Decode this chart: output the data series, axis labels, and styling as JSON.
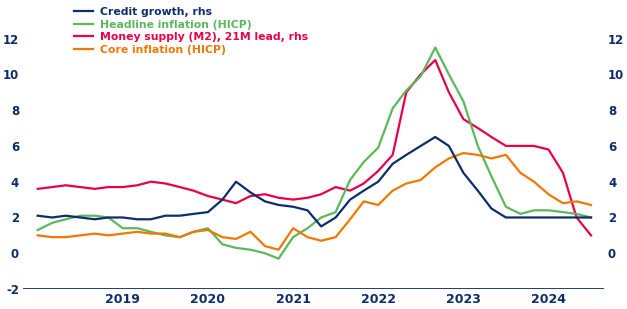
{
  "legend_labels": [
    "Credit growth, rhs",
    "Headline inflation (HICP)",
    "Money supply (M2), 21M lead, rhs",
    "Core inflation (HICP)"
  ],
  "colors": {
    "credit": "#0d2d6b",
    "headline": "#5cb85c",
    "money": "#e8004a",
    "core": "#f07800"
  },
  "lhs_ylim": [
    -2,
    14
  ],
  "rhs_ylim": [
    -2,
    14
  ],
  "lhs_yticks": [
    -2,
    0,
    2,
    4,
    6,
    8,
    10,
    12
  ],
  "rhs_yticks": [
    0,
    2,
    4,
    6,
    8,
    10,
    12
  ],
  "credit_growth": {
    "t": [
      2018.0,
      2018.17,
      2018.33,
      2018.5,
      2018.67,
      2018.83,
      2019.0,
      2019.17,
      2019.33,
      2019.5,
      2019.67,
      2019.83,
      2020.0,
      2020.17,
      2020.33,
      2020.5,
      2020.67,
      2020.83,
      2021.0,
      2021.17,
      2021.33,
      2021.5,
      2021.67,
      2021.83,
      2022.0,
      2022.17,
      2022.33,
      2022.5,
      2022.67,
      2022.83,
      2023.0,
      2023.17,
      2023.33,
      2023.5,
      2023.67,
      2023.83,
      2024.0,
      2024.17,
      2024.33,
      2024.5
    ],
    "v": [
      2.1,
      2.0,
      2.1,
      2.0,
      1.9,
      2.0,
      2.0,
      1.9,
      1.9,
      2.1,
      2.1,
      2.2,
      2.3,
      3.0,
      4.0,
      3.4,
      2.9,
      2.7,
      2.6,
      2.4,
      1.5,
      2.0,
      3.0,
      3.5,
      4.0,
      5.0,
      5.5,
      6.0,
      6.5,
      6.0,
      4.5,
      3.5,
      2.5,
      2.0,
      2.0,
      2.0,
      2.0,
      2.0,
      2.0,
      2.0
    ]
  },
  "headline_inflation": {
    "t": [
      2018.0,
      2018.17,
      2018.33,
      2018.5,
      2018.67,
      2018.83,
      2019.0,
      2019.17,
      2019.33,
      2019.5,
      2019.67,
      2019.83,
      2020.0,
      2020.17,
      2020.33,
      2020.5,
      2020.67,
      2020.83,
      2021.0,
      2021.17,
      2021.33,
      2021.5,
      2021.67,
      2021.83,
      2022.0,
      2022.17,
      2022.33,
      2022.5,
      2022.67,
      2022.83,
      2023.0,
      2023.17,
      2023.33,
      2023.5,
      2023.67,
      2023.83,
      2024.0,
      2024.17,
      2024.33,
      2024.5
    ],
    "v": [
      1.3,
      1.7,
      1.9,
      2.1,
      2.1,
      2.0,
      1.4,
      1.4,
      1.2,
      1.0,
      0.9,
      1.2,
      1.4,
      0.5,
      0.3,
      0.2,
      0.0,
      -0.3,
      0.9,
      1.4,
      2.0,
      2.3,
      4.1,
      5.1,
      5.9,
      8.1,
      9.1,
      9.9,
      11.5,
      10.0,
      8.5,
      6.0,
      4.3,
      2.6,
      2.2,
      2.4,
      2.4,
      2.3,
      2.2,
      2.0
    ]
  },
  "money_supply": {
    "t": [
      2018.0,
      2018.17,
      2018.33,
      2018.5,
      2018.67,
      2018.83,
      2019.0,
      2019.17,
      2019.33,
      2019.5,
      2019.67,
      2019.83,
      2020.0,
      2020.17,
      2020.33,
      2020.5,
      2020.67,
      2020.83,
      2021.0,
      2021.17,
      2021.33,
      2021.5,
      2021.67,
      2021.83,
      2022.0,
      2022.17,
      2022.33,
      2022.5,
      2022.67,
      2022.83,
      2023.0,
      2023.17,
      2023.33,
      2023.5,
      2023.67,
      2023.83,
      2024.0,
      2024.17,
      2024.33,
      2024.5
    ],
    "v": [
      3.6,
      3.7,
      3.8,
      3.7,
      3.6,
      3.7,
      3.7,
      3.8,
      4.0,
      3.9,
      3.7,
      3.5,
      3.2,
      3.0,
      2.8,
      3.2,
      3.3,
      3.1,
      3.0,
      3.1,
      3.3,
      3.7,
      3.5,
      3.9,
      4.6,
      5.5,
      9.0,
      10.0,
      10.8,
      9.0,
      7.5,
      7.0,
      6.5,
      6.0,
      6.0,
      6.0,
      5.8,
      4.5,
      2.0,
      1.0
    ]
  },
  "core_inflation": {
    "t": [
      2018.0,
      2018.17,
      2018.33,
      2018.5,
      2018.67,
      2018.83,
      2019.0,
      2019.17,
      2019.33,
      2019.5,
      2019.67,
      2019.83,
      2020.0,
      2020.17,
      2020.33,
      2020.5,
      2020.67,
      2020.83,
      2021.0,
      2021.17,
      2021.33,
      2021.5,
      2021.67,
      2021.83,
      2022.0,
      2022.17,
      2022.33,
      2022.5,
      2022.67,
      2022.83,
      2023.0,
      2023.17,
      2023.33,
      2023.5,
      2023.67,
      2023.83,
      2024.0,
      2024.17,
      2024.33,
      2024.5
    ],
    "v": [
      1.0,
      0.9,
      0.9,
      1.0,
      1.1,
      1.0,
      1.1,
      1.2,
      1.1,
      1.1,
      0.9,
      1.2,
      1.3,
      0.9,
      0.8,
      1.2,
      0.4,
      0.2,
      1.4,
      0.9,
      0.7,
      0.9,
      1.9,
      2.9,
      2.7,
      3.5,
      3.9,
      4.1,
      4.8,
      5.3,
      5.6,
      5.5,
      5.3,
      5.5,
      4.5,
      4.0,
      3.3,
      2.8,
      2.9,
      2.7
    ]
  },
  "xlim": [
    2017.83,
    2024.65
  ],
  "xticks": [
    2019,
    2020,
    2021,
    2022,
    2023,
    2024
  ],
  "lhs_ytick_labels": [
    "-2",
    "0",
    "2",
    "4",
    "6",
    "8",
    "10",
    "12"
  ],
  "rhs_ytick_labels": [
    "0",
    "2",
    "4",
    "6",
    "8",
    "10",
    "12"
  ],
  "tick_color": "#0d2d6b",
  "axis_line_color": "#0d2d6b",
  "background_color": "#ffffff",
  "linewidth": 1.6
}
